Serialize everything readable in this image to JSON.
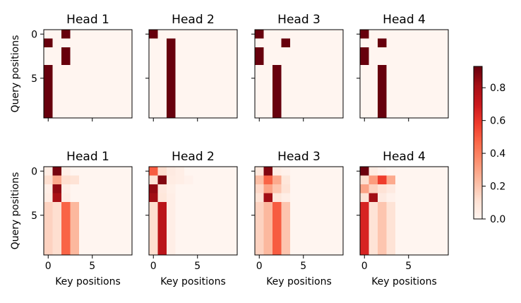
{
  "colors": {
    "cmap_low": "#fff5f0",
    "cmap_high": "#67000d",
    "axes": "#000000"
  },
  "chart_data": {
    "type": "heatmap",
    "colormap": "Reds",
    "colorbar": {
      "min": 0.0,
      "max": 0.93,
      "ticks": [
        "0.0",
        "0.2",
        "0.4",
        "0.6",
        "0.8"
      ],
      "tick_values": [
        0.0,
        0.2,
        0.4,
        0.6,
        0.8
      ]
    },
    "x_ticks": [
      0,
      5
    ],
    "y_ticks": [
      0,
      5
    ],
    "xlabel": "Key positions",
    "ylabel": "Query positions",
    "rows": [
      {
        "panels": [
          {
            "title": "Head 1",
            "matrix": [
              [
                0,
                0,
                1,
                0,
                0,
                0,
                0,
                0,
                0,
                0
              ],
              [
                1,
                0,
                0,
                0,
                0,
                0,
                0,
                0,
                0,
                0
              ],
              [
                0,
                0,
                1,
                0,
                0,
                0,
                0,
                0,
                0,
                0
              ],
              [
                0,
                0,
                1,
                0,
                0,
                0,
                0,
                0,
                0,
                0
              ],
              [
                1,
                0,
                0,
                0,
                0,
                0,
                0,
                0,
                0,
                0
              ],
              [
                1,
                0,
                0,
                0,
                0,
                0,
                0,
                0,
                0,
                0
              ],
              [
                1,
                0,
                0,
                0,
                0,
                0,
                0,
                0,
                0,
                0
              ],
              [
                1,
                0,
                0,
                0,
                0,
                0,
                0,
                0,
                0,
                0
              ],
              [
                1,
                0,
                0,
                0,
                0,
                0,
                0,
                0,
                0,
                0
              ],
              [
                1,
                0,
                0,
                0,
                0,
                0,
                0,
                0,
                0,
                0
              ]
            ]
          },
          {
            "title": "Head 2",
            "matrix": [
              [
                1,
                0,
                0,
                0,
                0,
                0,
                0,
                0,
                0,
                0
              ],
              [
                0,
                0,
                1,
                0,
                0,
                0,
                0,
                0,
                0,
                0
              ],
              [
                0,
                0,
                1,
                0,
                0,
                0,
                0,
                0,
                0,
                0
              ],
              [
                0,
                0,
                1,
                0,
                0,
                0,
                0,
                0,
                0,
                0
              ],
              [
                0,
                0,
                1,
                0,
                0,
                0,
                0,
                0,
                0,
                0
              ],
              [
                0,
                0,
                1,
                0,
                0,
                0,
                0,
                0,
                0,
                0
              ],
              [
                0,
                0,
                1,
                0,
                0,
                0,
                0,
                0,
                0,
                0
              ],
              [
                0,
                0,
                1,
                0,
                0,
                0,
                0,
                0,
                0,
                0
              ],
              [
                0,
                0,
                1,
                0,
                0,
                0,
                0,
                0,
                0,
                0
              ],
              [
                0,
                0,
                1,
                0,
                0,
                0,
                0,
                0,
                0,
                0
              ]
            ]
          },
          {
            "title": "Head 3",
            "matrix": [
              [
                1,
                0,
                0,
                0,
                0,
                0,
                0,
                0,
                0,
                0
              ],
              [
                0,
                0,
                0,
                1,
                0,
                0,
                0,
                0,
                0,
                0
              ],
              [
                1,
                0,
                0,
                0,
                0,
                0,
                0,
                0,
                0,
                0
              ],
              [
                1,
                0,
                0,
                0,
                0,
                0,
                0,
                0,
                0,
                0
              ],
              [
                0,
                0,
                1,
                0,
                0,
                0,
                0,
                0,
                0,
                0
              ],
              [
                0,
                0,
                1,
                0,
                0,
                0,
                0,
                0,
                0,
                0
              ],
              [
                0,
                0,
                1,
                0,
                0,
                0,
                0,
                0,
                0,
                0
              ],
              [
                0,
                0,
                1,
                0,
                0,
                0,
                0,
                0,
                0,
                0
              ],
              [
                0,
                0,
                1,
                0,
                0,
                0,
                0,
                0,
                0,
                0
              ],
              [
                0,
                0,
                1,
                0,
                0,
                0,
                0,
                0,
                0,
                0
              ]
            ]
          },
          {
            "title": "Head 4",
            "matrix": [
              [
                1,
                0,
                0,
                0,
                0,
                0,
                0,
                0,
                0,
                0
              ],
              [
                0,
                0,
                1,
                0,
                0,
                0,
                0,
                0,
                0,
                0
              ],
              [
                1,
                0,
                0,
                0,
                0,
                0,
                0,
                0,
                0,
                0
              ],
              [
                1,
                0,
                0,
                0,
                0,
                0,
                0,
                0,
                0,
                0
              ],
              [
                0,
                0,
                1,
                0,
                0,
                0,
                0,
                0,
                0,
                0
              ],
              [
                0,
                0,
                1,
                0,
                0,
                0,
                0,
                0,
                0,
                0
              ],
              [
                0,
                0,
                1,
                0,
                0,
                0,
                0,
                0,
                0,
                0
              ],
              [
                0,
                0,
                1,
                0,
                0,
                0,
                0,
                0,
                0,
                0
              ],
              [
                0,
                0,
                1,
                0,
                0,
                0,
                0,
                0,
                0,
                0
              ],
              [
                0,
                0,
                1,
                0,
                0,
                0,
                0,
                0,
                0,
                0
              ]
            ]
          }
        ]
      },
      {
        "panels": [
          {
            "title": "Head 1",
            "matrix": [
              [
                0.05,
                0.9,
                0.03,
                0,
                0,
                0,
                0,
                0,
                0,
                0
              ],
              [
                0.12,
                0.28,
                0.12,
                0.1,
                0,
                0,
                0,
                0,
                0,
                0
              ],
              [
                0.04,
                0.85,
                0.04,
                0,
                0,
                0,
                0,
                0,
                0,
                0
              ],
              [
                0.05,
                0.8,
                0.05,
                0,
                0,
                0,
                0,
                0,
                0,
                0
              ],
              [
                0.16,
                0.12,
                0.48,
                0.24,
                0,
                0,
                0,
                0,
                0,
                0
              ],
              [
                0.16,
                0.12,
                0.48,
                0.24,
                0,
                0,
                0,
                0,
                0,
                0
              ],
              [
                0.16,
                0.12,
                0.48,
                0.24,
                0,
                0,
                0,
                0,
                0,
                0
              ],
              [
                0.16,
                0.12,
                0.48,
                0.24,
                0,
                0,
                0,
                0,
                0,
                0
              ],
              [
                0.16,
                0.12,
                0.48,
                0.24,
                0,
                0,
                0,
                0,
                0,
                0
              ],
              [
                0.16,
                0.12,
                0.48,
                0.24,
                0,
                0,
                0,
                0,
                0,
                0
              ]
            ]
          },
          {
            "title": "Head 2",
            "matrix": [
              [
                0.5,
                0.12,
                0.06,
                0.04,
                0,
                0,
                0,
                0,
                0,
                0
              ],
              [
                0.1,
                0.88,
                0.05,
                0.04,
                0.02,
                0,
                0,
                0,
                0,
                0
              ],
              [
                0.85,
                0.07,
                0.03,
                0,
                0,
                0,
                0,
                0,
                0,
                0
              ],
              [
                0.82,
                0.08,
                0.04,
                0,
                0,
                0,
                0,
                0,
                0,
                0
              ],
              [
                0.12,
                0.75,
                0.04,
                0,
                0,
                0,
                0,
                0,
                0,
                0
              ],
              [
                0.12,
                0.75,
                0.04,
                0,
                0,
                0,
                0,
                0,
                0,
                0
              ],
              [
                0.12,
                0.75,
                0.04,
                0,
                0,
                0,
                0,
                0,
                0,
                0
              ],
              [
                0.12,
                0.75,
                0.04,
                0,
                0,
                0,
                0,
                0,
                0,
                0
              ],
              [
                0.12,
                0.75,
                0.04,
                0,
                0,
                0,
                0,
                0,
                0,
                0
              ],
              [
                0.12,
                0.75,
                0.04,
                0,
                0,
                0,
                0,
                0,
                0,
                0
              ]
            ]
          },
          {
            "title": "Head 3",
            "matrix": [
              [
                0.08,
                0.88,
                0.04,
                0.02,
                0,
                0,
                0,
                0,
                0,
                0
              ],
              [
                0.22,
                0.48,
                0.28,
                0.08,
                0,
                0,
                0,
                0,
                0,
                0
              ],
              [
                0.14,
                0.3,
                0.2,
                0.1,
                0,
                0,
                0,
                0,
                0,
                0
              ],
              [
                0.1,
                0.82,
                0.08,
                0.04,
                0,
                0,
                0,
                0,
                0,
                0
              ],
              [
                0.16,
                0.24,
                0.5,
                0.2,
                0,
                0,
                0,
                0,
                0,
                0
              ],
              [
                0.16,
                0.24,
                0.5,
                0.2,
                0,
                0,
                0,
                0,
                0,
                0
              ],
              [
                0.16,
                0.24,
                0.5,
                0.2,
                0,
                0,
                0,
                0,
                0,
                0
              ],
              [
                0.16,
                0.24,
                0.5,
                0.2,
                0,
                0,
                0,
                0,
                0,
                0
              ],
              [
                0.16,
                0.24,
                0.5,
                0.2,
                0,
                0,
                0,
                0,
                0,
                0
              ],
              [
                0.16,
                0.24,
                0.5,
                0.2,
                0,
                0,
                0,
                0,
                0,
                0
              ]
            ]
          },
          {
            "title": "Head 4",
            "matrix": [
              [
                0.92,
                0.05,
                0.02,
                0,
                0,
                0,
                0,
                0,
                0,
                0
              ],
              [
                0.12,
                0.32,
                0.58,
                0.28,
                0,
                0,
                0,
                0,
                0,
                0
              ],
              [
                0.3,
                0.16,
                0.1,
                0.06,
                0,
                0,
                0,
                0,
                0,
                0
              ],
              [
                0.1,
                0.82,
                0.06,
                0.02,
                0,
                0,
                0,
                0,
                0,
                0
              ],
              [
                0.66,
                0.1,
                0.2,
                0.1,
                0,
                0,
                0,
                0,
                0,
                0
              ],
              [
                0.66,
                0.1,
                0.2,
                0.1,
                0,
                0,
                0,
                0,
                0,
                0
              ],
              [
                0.66,
                0.1,
                0.2,
                0.1,
                0,
                0,
                0,
                0,
                0,
                0
              ],
              [
                0.66,
                0.1,
                0.2,
                0.1,
                0,
                0,
                0,
                0,
                0,
                0
              ],
              [
                0.66,
                0.1,
                0.2,
                0.1,
                0,
                0,
                0,
                0,
                0,
                0
              ],
              [
                0.66,
                0.1,
                0.2,
                0.1,
                0,
                0,
                0,
                0,
                0,
                0
              ]
            ]
          }
        ]
      }
    ]
  }
}
